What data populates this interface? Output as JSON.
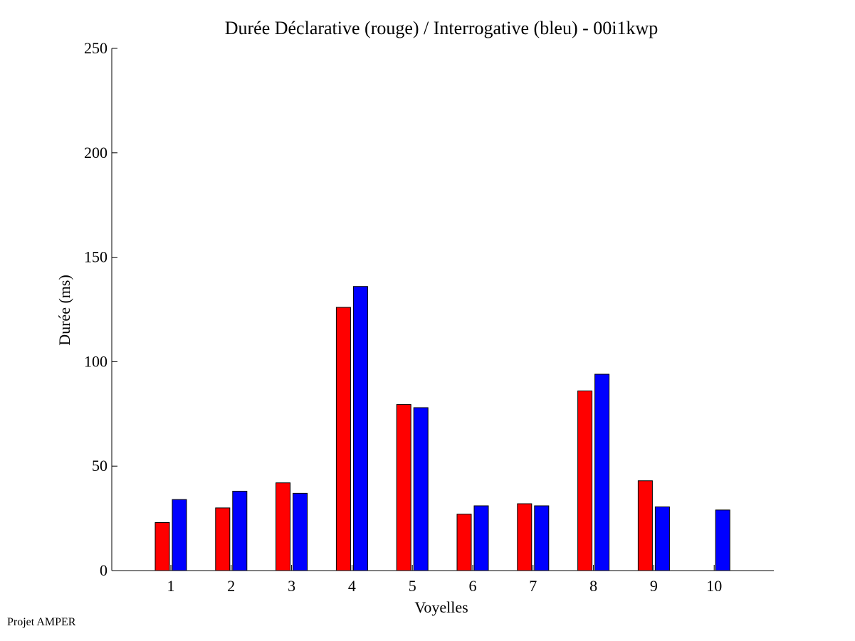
{
  "chart_data": {
    "type": "bar",
    "title": "Durée Déclarative (rouge) / Interrogative (bleu) - 00i1kwp",
    "xlabel": "Voyelles",
    "ylabel": "Durée (ms)",
    "categories": [
      "1",
      "2",
      "3",
      "4",
      "5",
      "6",
      "7",
      "8",
      "9",
      "10"
    ],
    "ylim": [
      0,
      250
    ],
    "yticks": [
      0,
      50,
      100,
      150,
      200,
      250
    ],
    "grid": false,
    "series": [
      {
        "color": "#ff0000",
        "values": [
          23,
          30,
          42,
          126,
          79.5,
          27,
          32,
          86,
          43,
          null
        ]
      },
      {
        "color": "#0000ff",
        "values": [
          34,
          38,
          37,
          136,
          78,
          31,
          31,
          94,
          30.5,
          29
        ]
      }
    ]
  },
  "footer": {
    "text": "Projet AMPER"
  }
}
